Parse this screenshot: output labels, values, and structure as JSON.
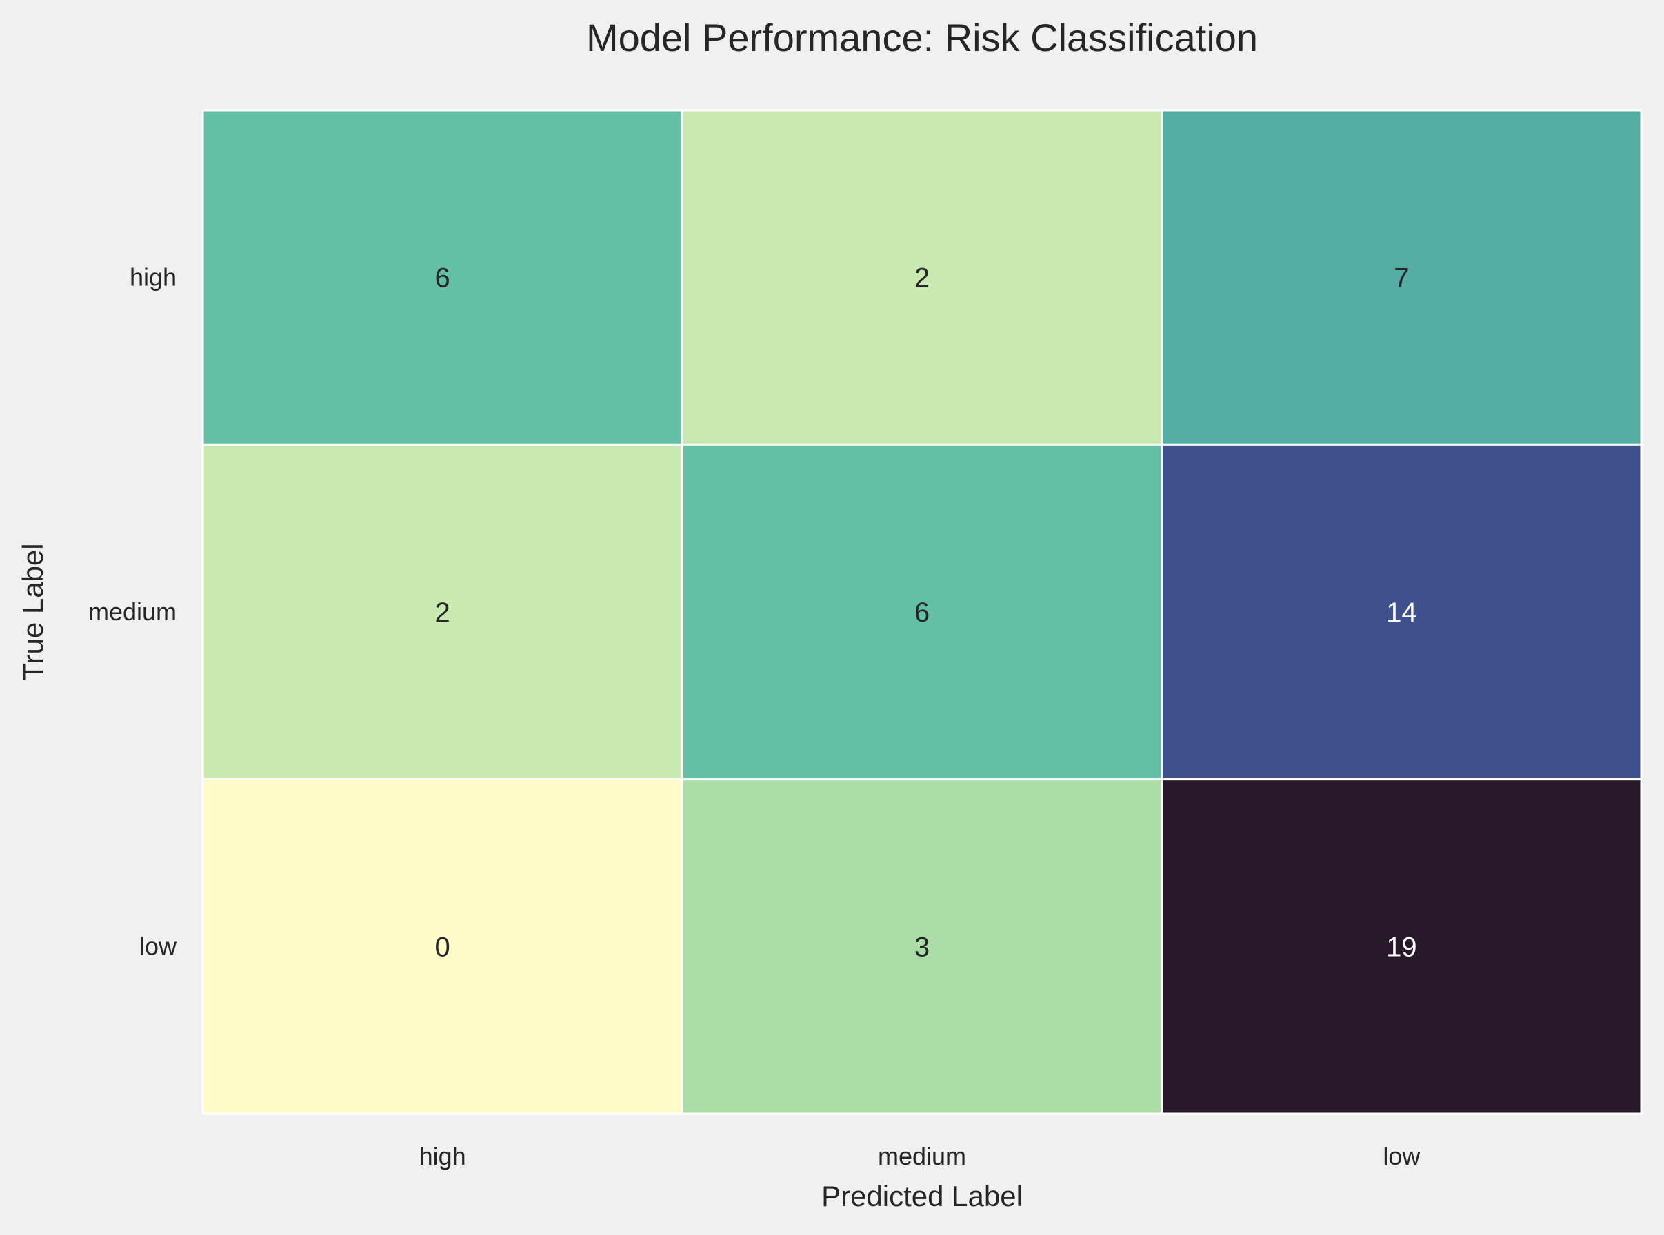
{
  "chart_data": {
    "type": "heatmap",
    "title": "Model Performance: Risk Classification",
    "xlabel": "Predicted Label",
    "ylabel": "True Label",
    "x_categories": [
      "high",
      "medium",
      "low"
    ],
    "y_categories": [
      "high",
      "medium",
      "low"
    ],
    "values": [
      [
        6,
        2,
        7
      ],
      [
        2,
        6,
        14
      ],
      [
        0,
        3,
        19
      ]
    ],
    "colorscale": "YlGnBu-dark (light yellow → green → teal → blue → near-black)",
    "vmin": 0,
    "vmax": 19,
    "annotations": true,
    "colorbar": false,
    "grid": false
  }
}
